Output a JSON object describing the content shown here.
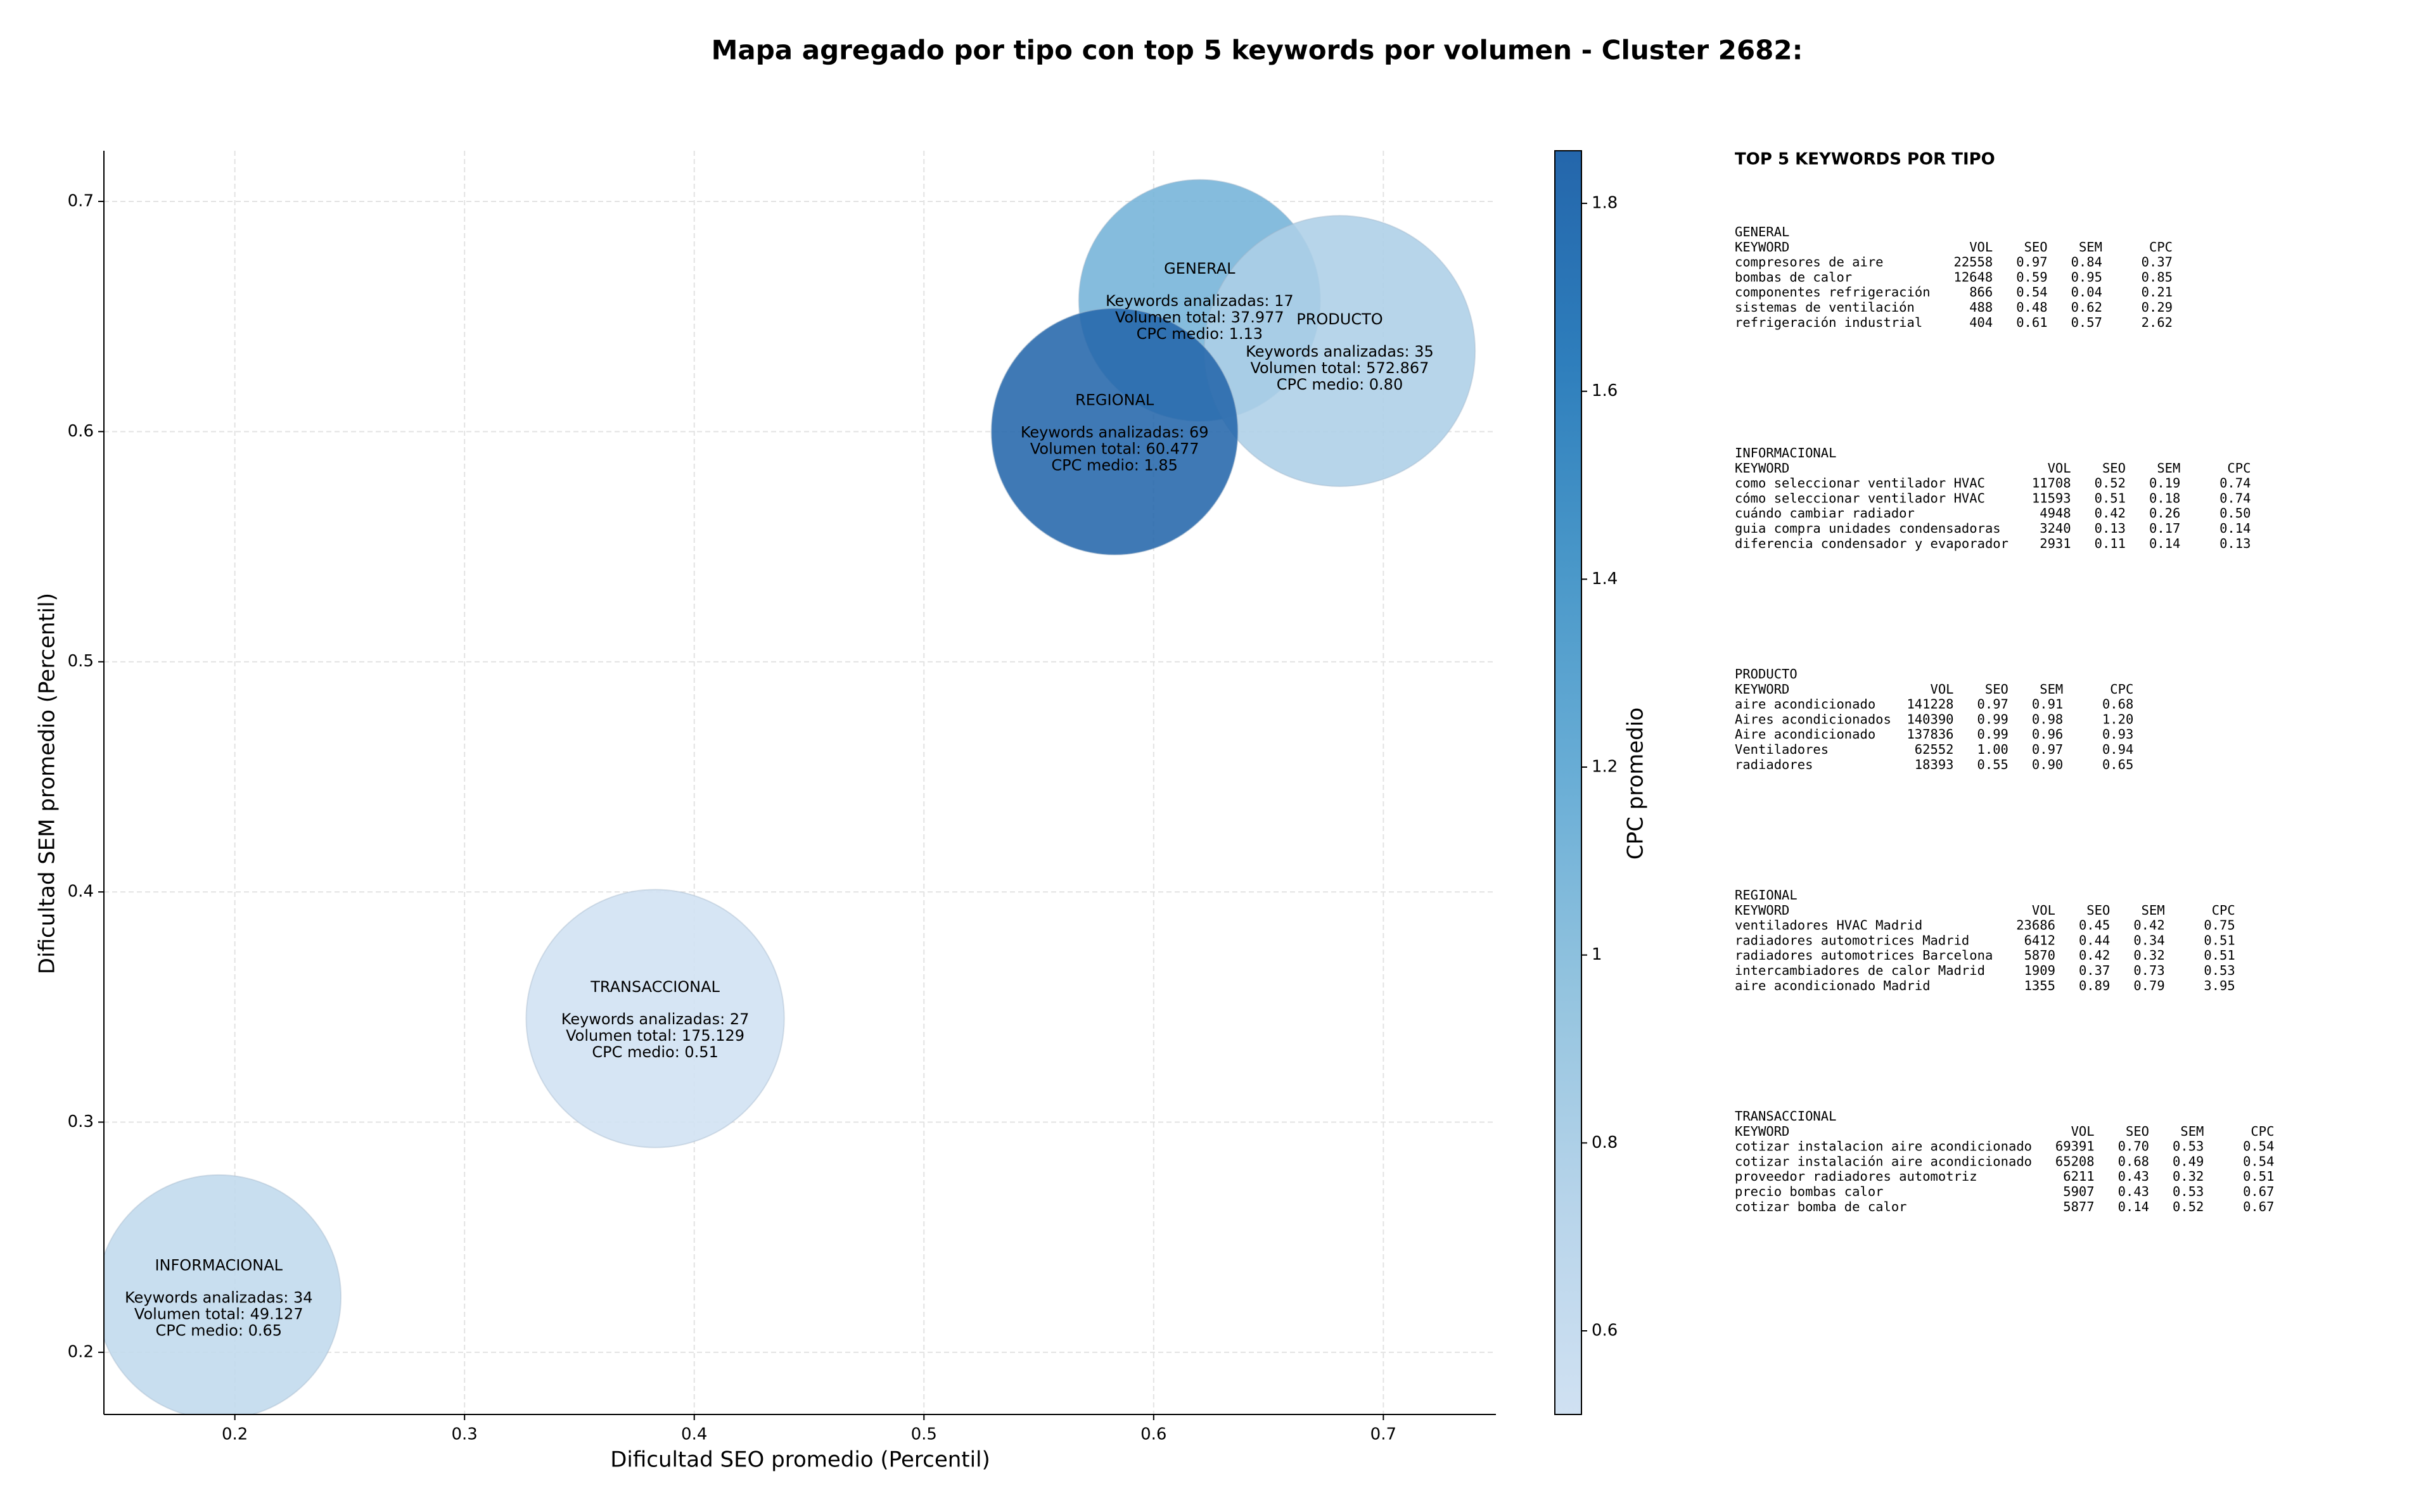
{
  "chart_data": {
    "type": "bubble",
    "title": "Mapa agregado por tipo con top 5 keywords por volumen - Cluster 2682:",
    "x_label": "Dificultad SEO promedio (Percentil)",
    "y_label": "Dificultad SEM promedio (Percentil)",
    "xlim": [
      0.143,
      0.749
    ],
    "ylim": [
      0.173,
      0.722
    ],
    "xticks": [
      0.2,
      0.3,
      0.4,
      0.5,
      0.6,
      0.7
    ],
    "yticks": [
      0.2,
      0.3,
      0.4,
      0.5,
      0.6,
      0.7
    ],
    "grid": true,
    "alpha": 0.88,
    "colormap": [
      "#d0e1f2",
      "#b7d4ea",
      "#94c4df",
      "#6aaed6",
      "#4a98c9",
      "#2e7ebc",
      "#2466ab"
    ],
    "colorbar": {
      "label": "CPC promedio",
      "lim": [
        0.511,
        1.856
      ],
      "ticks": [
        0.6,
        0.8,
        1.0,
        1.2,
        1.4,
        1.6,
        1.8
      ]
    },
    "series": [
      {
        "name": "GENERAL",
        "x": 0.62,
        "y": 0.657,
        "volume": 37977,
        "cpc": 1.13,
        "lines": [
          "Keywords analizadas: 17",
          "Volumen total: 37.977",
          "CPC medio: 1.13"
        ]
      },
      {
        "name": "INFORMACIONAL",
        "x": 0.193,
        "y": 0.224,
        "volume": 49127,
        "cpc": 0.65,
        "lines": [
          "Keywords analizadas: 34",
          "Volumen total: 49.127",
          "CPC medio: 0.65"
        ]
      },
      {
        "name": "PRODUCTO",
        "x": 0.681,
        "y": 0.635,
        "volume": 572867,
        "cpc": 0.8,
        "lines": [
          "Keywords analizadas: 35",
          "Volumen total: 572.867",
          "CPC medio: 0.80"
        ]
      },
      {
        "name": "REGIONAL",
        "x": 0.583,
        "y": 0.6,
        "volume": 60477,
        "cpc": 1.85,
        "lines": [
          "Keywords analizadas: 69",
          "Volumen total: 60.477",
          "CPC medio: 1.85"
        ]
      },
      {
        "name": "TRANSACCIONAL",
        "x": 0.383,
        "y": 0.345,
        "volume": 175129,
        "cpc": 0.51,
        "lines": [
          "Keywords analizadas: 27",
          "Volumen total: 175.129",
          "CPC medio: 0.51"
        ]
      }
    ]
  },
  "side_panel": {
    "title": "TOP 5 KEYWORDS POR TIPO",
    "groups": [
      {
        "name": "GENERAL",
        "header": [
          "KEYWORD",
          "VOL",
          "SEO",
          "SEM",
          "CPC"
        ],
        "rows": [
          [
            "compresores de aire",
            "22558",
            "0.97",
            "0.84",
            "0.37"
          ],
          [
            "bombas de calor",
            "12648",
            "0.59",
            "0.95",
            "0.85"
          ],
          [
            "componentes refrigeración",
            "866",
            "0.54",
            "0.04",
            "0.21"
          ],
          [
            "sistemas de ventilación",
            "488",
            "0.48",
            "0.62",
            "0.29"
          ],
          [
            "refrigeración industrial",
            "404",
            "0.61",
            "0.57",
            "2.62"
          ]
        ]
      },
      {
        "name": "INFORMACIONAL",
        "header": [
          "KEYWORD",
          "VOL",
          "SEO",
          "SEM",
          "CPC"
        ],
        "rows": [
          [
            "como seleccionar ventilador HVAC",
            "11708",
            "0.52",
            "0.19",
            "0.74"
          ],
          [
            "cómo seleccionar ventilador HVAC",
            "11593",
            "0.51",
            "0.18",
            "0.74"
          ],
          [
            "cuándo cambiar radiador",
            "4948",
            "0.42",
            "0.26",
            "0.50"
          ],
          [
            "guia compra unidades condensadoras",
            "3240",
            "0.13",
            "0.17",
            "0.14"
          ],
          [
            "diferencia condensador y evaporador",
            "2931",
            "0.11",
            "0.14",
            "0.13"
          ]
        ]
      },
      {
        "name": "PRODUCTO",
        "header": [
          "KEYWORD",
          "VOL",
          "SEO",
          "SEM",
          "CPC"
        ],
        "rows": [
          [
            "aire acondicionado",
            "141228",
            "0.97",
            "0.91",
            "0.68"
          ],
          [
            "Aires acondicionados",
            "140390",
            "0.99",
            "0.98",
            "1.20"
          ],
          [
            "Aire acondicionado",
            "137836",
            "0.99",
            "0.96",
            "0.93"
          ],
          [
            "Ventiladores",
            "62552",
            "1.00",
            "0.97",
            "0.94"
          ],
          [
            "radiadores",
            "18393",
            "0.55",
            "0.90",
            "0.65"
          ]
        ]
      },
      {
        "name": "REGIONAL",
        "header": [
          "KEYWORD",
          "VOL",
          "SEO",
          "SEM",
          "CPC"
        ],
        "rows": [
          [
            "ventiladores HVAC Madrid",
            "23686",
            "0.45",
            "0.42",
            "0.75"
          ],
          [
            "radiadores automotrices Madrid",
            "6412",
            "0.44",
            "0.34",
            "0.51"
          ],
          [
            "radiadores automotrices Barcelona",
            "5870",
            "0.42",
            "0.32",
            "0.51"
          ],
          [
            "intercambiadores de calor Madrid",
            "1909",
            "0.37",
            "0.73",
            "0.53"
          ],
          [
            "aire acondicionado Madrid",
            "1355",
            "0.89",
            "0.79",
            "3.95"
          ]
        ]
      },
      {
        "name": "TRANSACCIONAL",
        "header": [
          "KEYWORD",
          "VOL",
          "SEO",
          "SEM",
          "CPC"
        ],
        "rows": [
          [
            "cotizar instalacion aire acondicionado",
            "69391",
            "0.70",
            "0.53",
            "0.54"
          ],
          [
            "cotizar instalación aire acondicionado",
            "65208",
            "0.68",
            "0.49",
            "0.54"
          ],
          [
            "proveedor radiadores automotriz",
            "6211",
            "0.43",
            "0.32",
            "0.51"
          ],
          [
            "precio bombas calor",
            "5907",
            "0.43",
            "0.53",
            "0.67"
          ],
          [
            "cotizar bomba de calor",
            "5877",
            "0.14",
            "0.52",
            "0.67"
          ]
        ]
      }
    ]
  }
}
